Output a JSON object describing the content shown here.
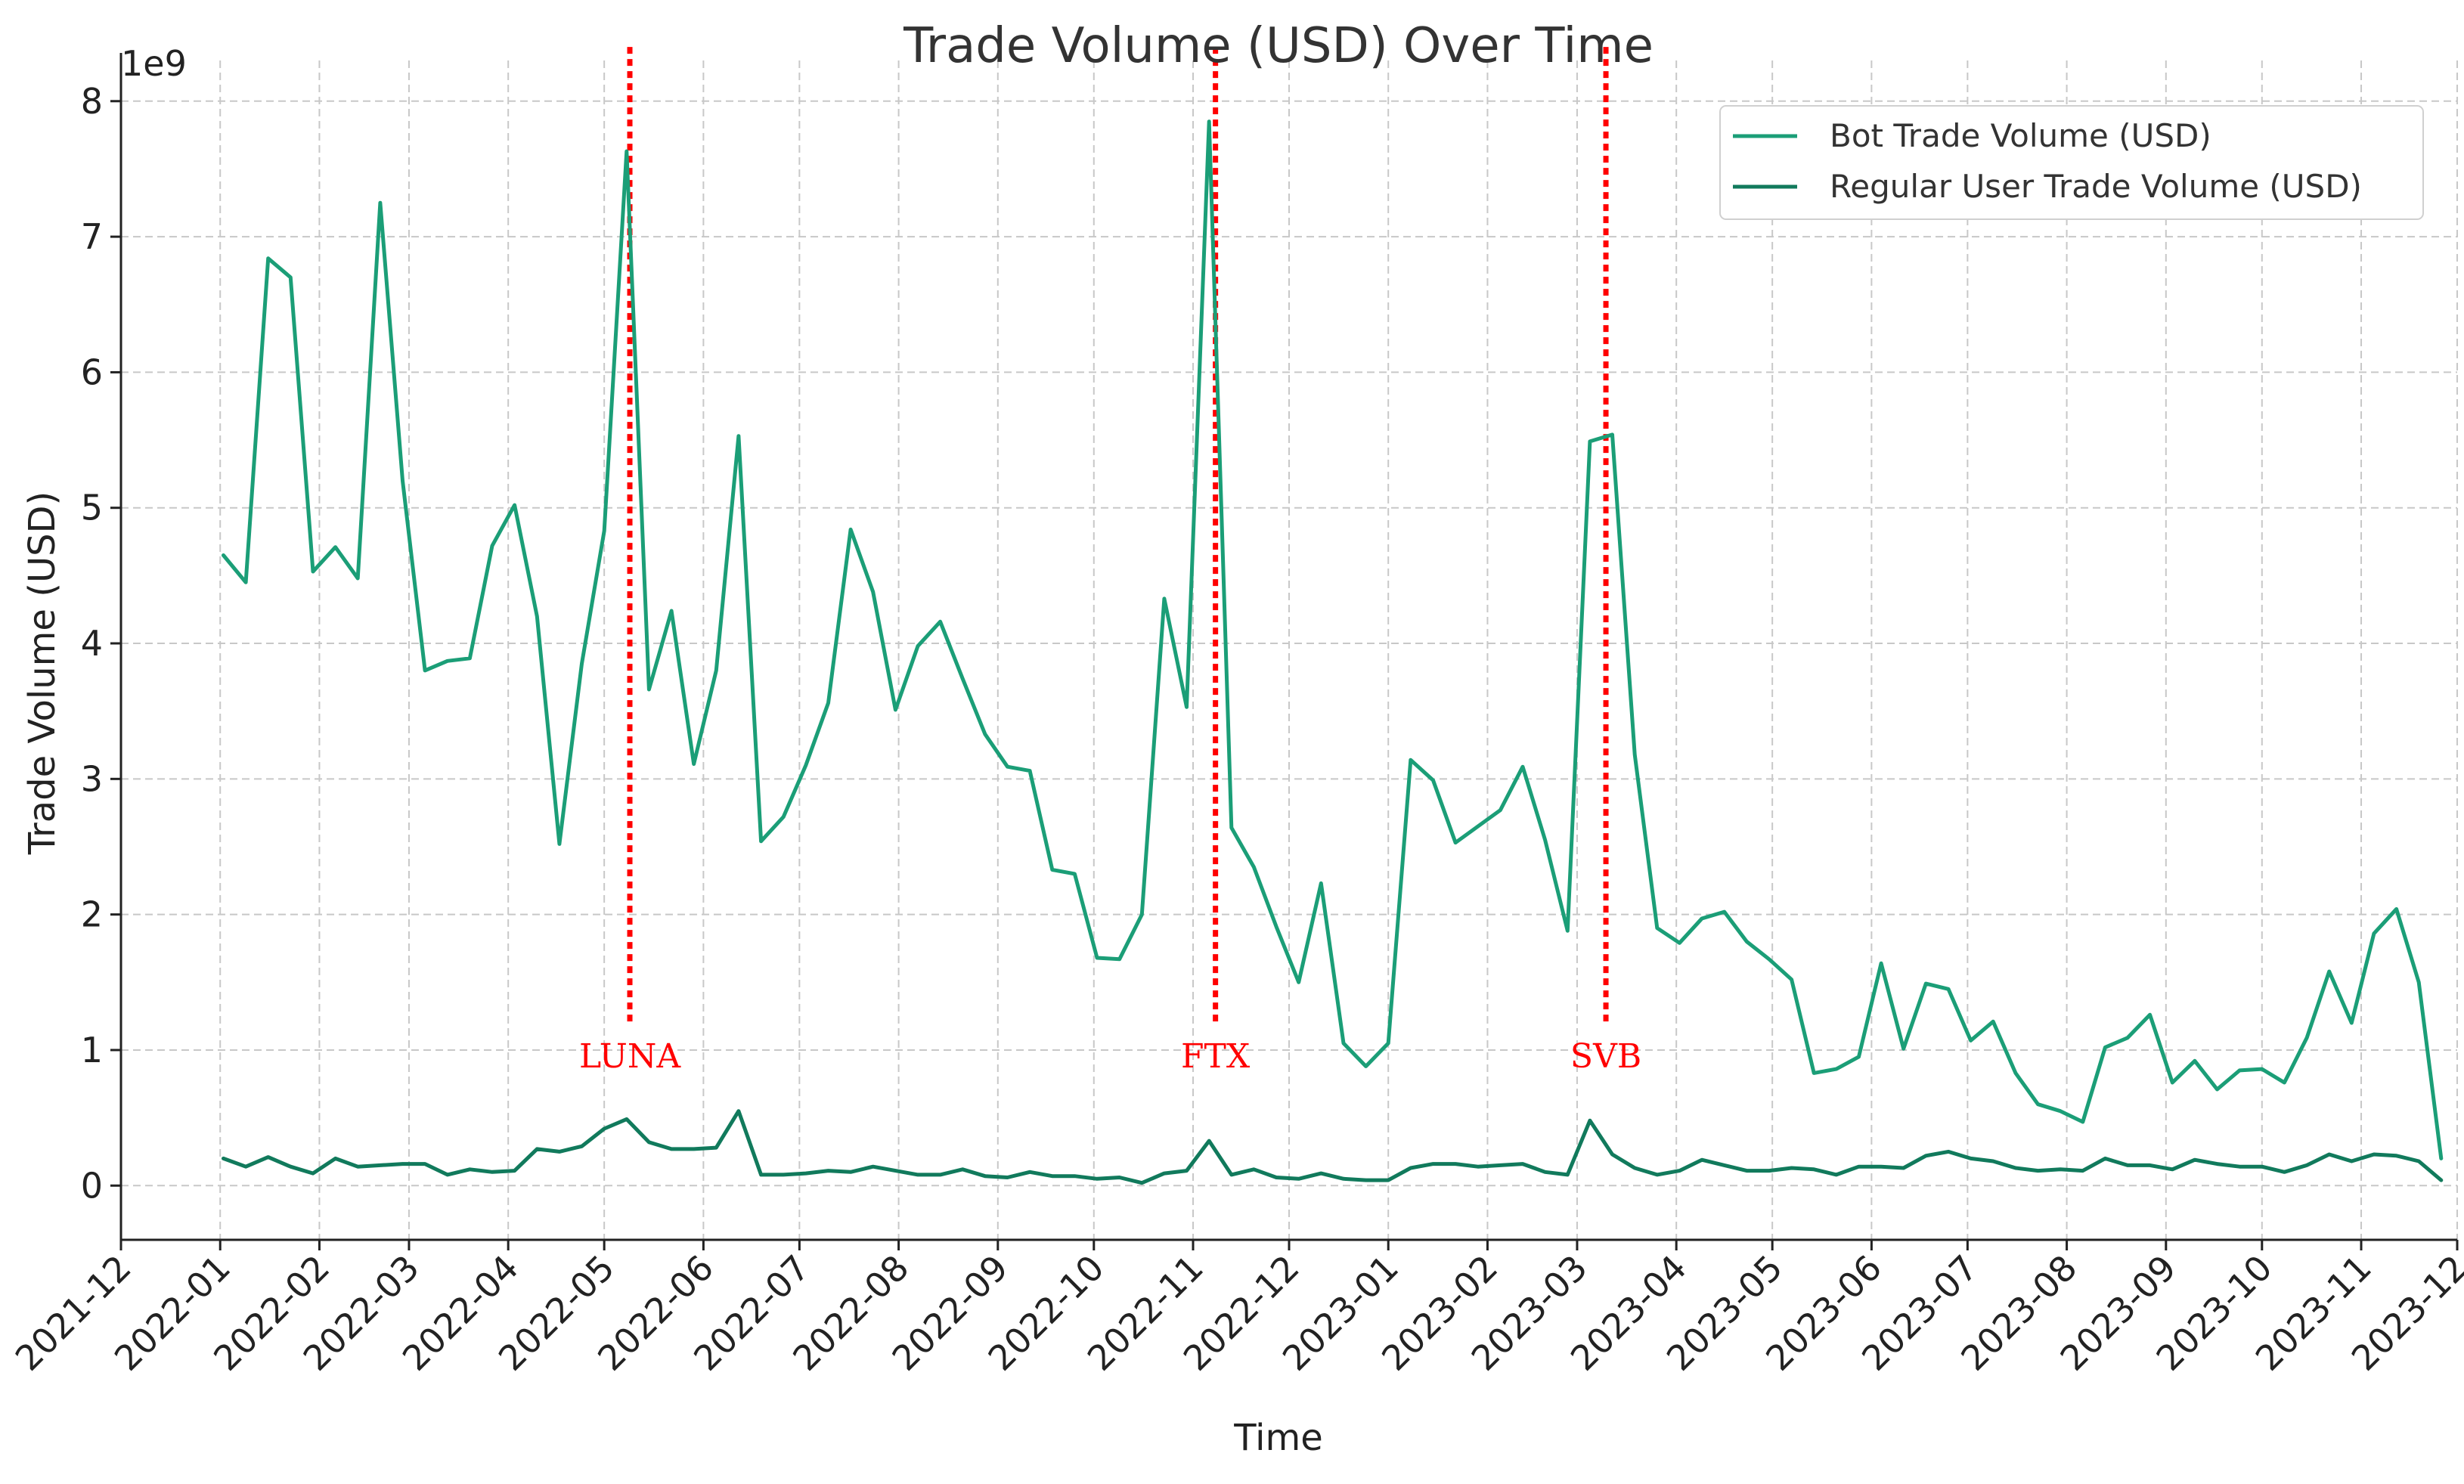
{
  "chart_data": {
    "type": "line",
    "title": "Trade Volume (USD) Over Time",
    "xlabel": "Time",
    "ylabel": "Trade Volume (USD)",
    "y_multiplier_label": "1e9",
    "xlim": [
      "2021-12-01",
      "2023-12-01"
    ],
    "ylim": [
      -0.4,
      8.3
    ],
    "x_ticks": [
      "2021-12",
      "2022-01",
      "2022-02",
      "2022-03",
      "2022-04",
      "2022-05",
      "2022-06",
      "2022-07",
      "2022-08",
      "2022-09",
      "2022-10",
      "2022-11",
      "2022-12",
      "2023-01",
      "2023-02",
      "2023-03",
      "2023-04",
      "2023-05",
      "2023-06",
      "2023-07",
      "2023-08",
      "2023-09",
      "2023-10",
      "2023-11",
      "2023-12"
    ],
    "y_ticks": [
      0,
      1,
      2,
      3,
      4,
      5,
      6,
      7,
      8
    ],
    "grid": true,
    "legend_position": "top-right",
    "x": [
      "2022-01-02",
      "2022-01-09",
      "2022-01-16",
      "2022-01-23",
      "2022-01-30",
      "2022-02-06",
      "2022-02-13",
      "2022-02-20",
      "2022-02-27",
      "2022-03-06",
      "2022-03-13",
      "2022-03-20",
      "2022-03-27",
      "2022-04-03",
      "2022-04-10",
      "2022-04-17",
      "2022-04-24",
      "2022-05-01",
      "2022-05-08",
      "2022-05-15",
      "2022-05-22",
      "2022-05-29",
      "2022-06-05",
      "2022-06-12",
      "2022-06-19",
      "2022-06-26",
      "2022-07-03",
      "2022-07-10",
      "2022-07-17",
      "2022-07-24",
      "2022-07-31",
      "2022-08-07",
      "2022-08-14",
      "2022-08-21",
      "2022-08-28",
      "2022-09-04",
      "2022-09-11",
      "2022-09-18",
      "2022-09-25",
      "2022-10-02",
      "2022-10-09",
      "2022-10-16",
      "2022-10-23",
      "2022-10-30",
      "2022-11-06",
      "2022-11-13",
      "2022-11-20",
      "2022-11-27",
      "2022-12-04",
      "2022-12-11",
      "2022-12-18",
      "2022-12-25",
      "2023-01-01",
      "2023-01-08",
      "2023-01-15",
      "2023-01-22",
      "2023-01-29",
      "2023-02-05",
      "2023-02-12",
      "2023-02-19",
      "2023-02-26",
      "2023-03-05",
      "2023-03-12",
      "2023-03-19",
      "2023-03-26",
      "2023-04-02",
      "2023-04-09",
      "2023-04-16",
      "2023-04-23",
      "2023-04-30",
      "2023-05-07",
      "2023-05-14",
      "2023-05-21",
      "2023-05-28",
      "2023-06-04",
      "2023-06-11",
      "2023-06-18",
      "2023-06-25",
      "2023-07-02",
      "2023-07-09",
      "2023-07-16",
      "2023-07-23",
      "2023-07-30",
      "2023-08-06",
      "2023-08-13",
      "2023-08-20",
      "2023-08-27",
      "2023-09-03",
      "2023-09-10",
      "2023-09-17",
      "2023-09-24",
      "2023-10-01",
      "2023-10-08",
      "2023-10-15",
      "2023-10-22",
      "2023-10-29",
      "2023-11-05",
      "2023-11-12",
      "2023-11-19",
      "2023-11-26"
    ],
    "series": [
      {
        "name": "Bot Trade Volume (USD)",
        "color": "#1b9e77",
        "values": [
          4.65,
          4.45,
          6.84,
          6.7,
          4.53,
          4.71,
          4.48,
          7.25,
          5.2,
          3.8,
          3.87,
          3.89,
          4.72,
          5.02,
          4.2,
          2.52,
          3.85,
          4.83,
          7.63,
          3.66,
          4.24,
          3.11,
          3.8,
          5.53,
          2.54,
          2.72,
          3.1,
          3.56,
          4.84,
          4.38,
          3.51,
          3.98,
          4.16,
          3.74,
          3.33,
          3.09,
          3.06,
          2.33,
          2.3,
          1.68,
          1.67,
          2.0,
          4.33,
          3.53,
          7.85,
          2.64,
          2.35,
          1.91,
          1.5,
          2.23,
          1.05,
          0.88,
          1.05,
          3.14,
          2.99,
          2.53,
          2.65,
          2.77,
          3.09,
          2.55,
          1.88,
          5.49,
          5.54,
          3.18,
          1.9,
          1.79,
          1.97,
          2.02,
          1.8,
          1.67,
          1.52,
          0.83,
          0.86,
          0.95,
          1.64,
          1.01,
          1.49,
          1.45,
          1.07,
          1.21,
          0.83,
          0.6,
          0.55,
          0.47,
          1.02,
          1.09,
          1.26,
          0.76,
          0.92,
          0.71,
          0.85,
          0.86,
          0.76,
          1.09,
          1.58,
          1.2,
          1.86,
          2.04,
          1.5,
          0.2
        ]
      },
      {
        "name": "Regular User Trade Volume (USD)",
        "color": "#117a5c",
        "values": [
          0.2,
          0.14,
          0.21,
          0.14,
          0.09,
          0.2,
          0.14,
          0.15,
          0.16,
          0.16,
          0.08,
          0.12,
          0.1,
          0.11,
          0.27,
          0.25,
          0.29,
          0.42,
          0.49,
          0.32,
          0.27,
          0.27,
          0.28,
          0.55,
          0.08,
          0.08,
          0.09,
          0.11,
          0.1,
          0.14,
          0.11,
          0.08,
          0.08,
          0.12,
          0.07,
          0.06,
          0.1,
          0.07,
          0.07,
          0.05,
          0.06,
          0.02,
          0.09,
          0.11,
          0.33,
          0.08,
          0.12,
          0.06,
          0.05,
          0.09,
          0.05,
          0.04,
          0.04,
          0.13,
          0.16,
          0.16,
          0.14,
          0.15,
          0.16,
          0.1,
          0.08,
          0.48,
          0.23,
          0.13,
          0.08,
          0.11,
          0.19,
          0.15,
          0.11,
          0.11,
          0.13,
          0.12,
          0.08,
          0.14,
          0.14,
          0.13,
          0.22,
          0.25,
          0.2,
          0.18,
          0.13,
          0.11,
          0.12,
          0.11,
          0.2,
          0.15,
          0.15,
          0.12,
          0.19,
          0.16,
          0.14,
          0.14,
          0.1,
          0.15,
          0.23,
          0.18,
          0.23,
          0.22,
          0.18,
          0.04
        ]
      }
    ],
    "events": [
      {
        "label": "LUNA",
        "date": "2022-05-09"
      },
      {
        "label": "FTX",
        "date": "2022-11-08"
      },
      {
        "label": "SVB",
        "date": "2023-03-10"
      }
    ],
    "event_line_range": [
      1.2,
      8.4
    ],
    "event_label_y": 0.95,
    "event_color": "#ff0000"
  }
}
